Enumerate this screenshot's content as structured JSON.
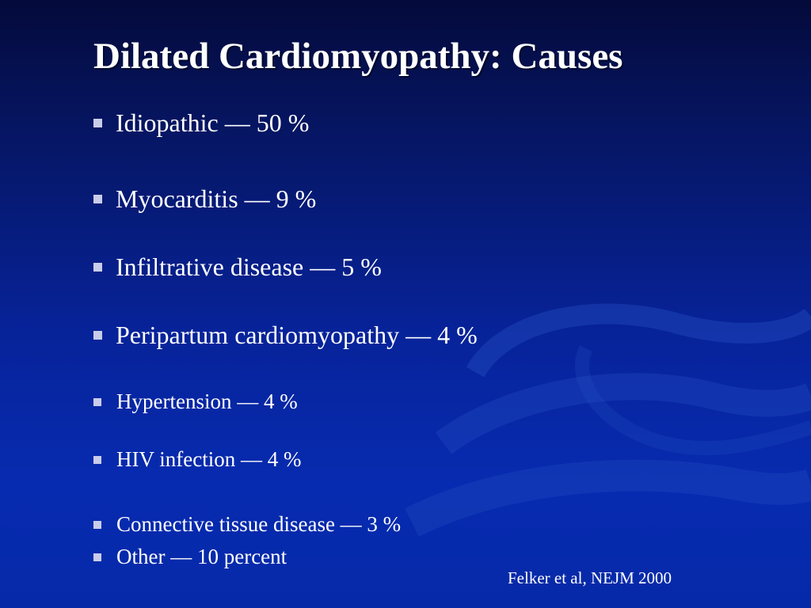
{
  "slide": {
    "title": "Dilated Cardiomyopathy: Causes",
    "bullets": [
      {
        "text": "Idiopathic — 50 %"
      },
      {
        "text": "Myocarditis — 9 %"
      },
      {
        "text": "Infiltrative disease — 5 %"
      },
      {
        "text": "Peripartum cardiomyopathy — 4 %"
      },
      {
        "text": "Hypertension — 4 %"
      },
      {
        "text": "HIV infection — 4 %"
      },
      {
        "text": "Connective tissue disease — 3 %"
      },
      {
        "text": "Other — 10 percent"
      }
    ],
    "citation": "Felker et al, NEJM 2000"
  },
  "colors": {
    "background_top": "#040a3a",
    "background_bottom": "#072bb0",
    "text": "#ffffff",
    "bullet_marker": "#c9cdea"
  }
}
